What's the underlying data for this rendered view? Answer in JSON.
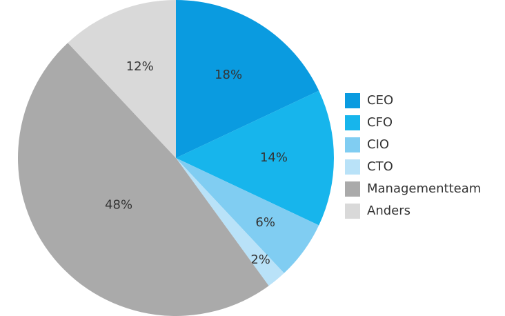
{
  "chart_data": {
    "type": "pie",
    "categories": [
      "CEO",
      "CFO",
      "CIO",
      "CTO",
      "Managementteam",
      "Anders"
    ],
    "values": [
      18,
      14,
      6,
      2,
      48,
      12
    ],
    "value_labels": [
      "18%",
      "14%",
      "6%",
      "2%",
      "48%",
      "12%"
    ],
    "colors": [
      "#0a9be0",
      "#17b5ec",
      "#80cdf2",
      "#b9e2f8",
      "#aaaaaa",
      "#d9d9d9"
    ],
    "legend": "right"
  }
}
